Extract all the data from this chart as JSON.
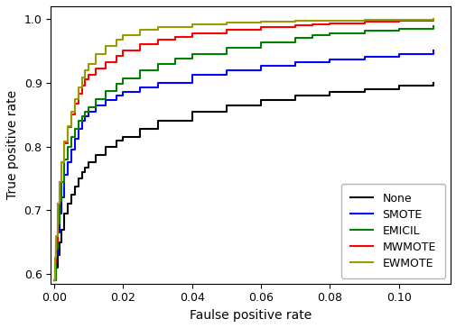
{
  "title": "",
  "xlabel": "Faulse positive rate",
  "ylabel": "True positive rate",
  "xlim": [
    -0.001,
    0.115
  ],
  "ylim": [
    0.585,
    1.02
  ],
  "xticks": [
    0.0,
    0.02,
    0.04,
    0.06,
    0.08,
    0.1
  ],
  "yticks": [
    0.6,
    0.7,
    0.8,
    0.9,
    1.0
  ],
  "legend_labels": [
    "None",
    "SMOTE",
    "EMICIL",
    "MWMOTE",
    "EWMOTE"
  ],
  "legend_colors": [
    "black",
    "blue",
    "green",
    "red",
    "#999900"
  ],
  "legend_loc": "lower right",
  "curves": {
    "None": {
      "color": "black",
      "lw": 1.5,
      "x": [
        0.0,
        0.0005,
        0.001,
        0.0015,
        0.002,
        0.003,
        0.004,
        0.005,
        0.006,
        0.007,
        0.008,
        0.009,
        0.01,
        0.012,
        0.015,
        0.018,
        0.02,
        0.025,
        0.03,
        0.04,
        0.05,
        0.06,
        0.07,
        0.08,
        0.09,
        0.1,
        0.11
      ],
      "y": [
        0.59,
        0.61,
        0.63,
        0.65,
        0.67,
        0.695,
        0.71,
        0.725,
        0.738,
        0.75,
        0.76,
        0.767,
        0.775,
        0.787,
        0.8,
        0.81,
        0.815,
        0.828,
        0.84,
        0.855,
        0.865,
        0.873,
        0.88,
        0.885,
        0.89,
        0.895,
        0.9
      ]
    },
    "SMOTE": {
      "color": "blue",
      "lw": 1.5,
      "x": [
        0.0,
        0.0005,
        0.001,
        0.0015,
        0.002,
        0.003,
        0.004,
        0.005,
        0.006,
        0.007,
        0.008,
        0.009,
        0.01,
        0.012,
        0.015,
        0.018,
        0.02,
        0.025,
        0.03,
        0.04,
        0.05,
        0.06,
        0.07,
        0.08,
        0.09,
        0.1,
        0.11
      ],
      "y": [
        0.59,
        0.63,
        0.665,
        0.695,
        0.72,
        0.755,
        0.775,
        0.795,
        0.812,
        0.828,
        0.84,
        0.848,
        0.855,
        0.864,
        0.873,
        0.88,
        0.885,
        0.893,
        0.9,
        0.912,
        0.92,
        0.927,
        0.932,
        0.937,
        0.941,
        0.945,
        0.95
      ]
    },
    "EMICIL": {
      "color": "green",
      "lw": 1.5,
      "x": [
        0.0,
        0.0005,
        0.001,
        0.0015,
        0.002,
        0.003,
        0.004,
        0.005,
        0.006,
        0.007,
        0.008,
        0.009,
        0.01,
        0.012,
        0.015,
        0.018,
        0.02,
        0.025,
        0.03,
        0.035,
        0.04,
        0.05,
        0.06,
        0.07,
        0.075,
        0.08,
        0.09,
        0.1,
        0.11
      ],
      "y": [
        0.59,
        0.64,
        0.68,
        0.715,
        0.745,
        0.78,
        0.8,
        0.815,
        0.828,
        0.84,
        0.848,
        0.855,
        0.862,
        0.875,
        0.887,
        0.898,
        0.907,
        0.92,
        0.93,
        0.938,
        0.945,
        0.955,
        0.963,
        0.97,
        0.974,
        0.977,
        0.982,
        0.985,
        0.989
      ]
    },
    "MWMOTE": {
      "color": "red",
      "lw": 1.5,
      "x": [
        0.0,
        0.0003,
        0.0005,
        0.001,
        0.0015,
        0.002,
        0.003,
        0.004,
        0.005,
        0.006,
        0.007,
        0.008,
        0.009,
        0.01,
        0.012,
        0.015,
        0.018,
        0.02,
        0.025,
        0.03,
        0.035,
        0.04,
        0.05,
        0.06,
        0.07,
        0.075,
        0.08,
        0.09,
        0.1,
        0.11
      ],
      "y": [
        0.59,
        0.62,
        0.65,
        0.71,
        0.745,
        0.775,
        0.805,
        0.83,
        0.85,
        0.868,
        0.883,
        0.895,
        0.905,
        0.912,
        0.922,
        0.933,
        0.942,
        0.95,
        0.96,
        0.967,
        0.972,
        0.977,
        0.983,
        0.987,
        0.99,
        0.992,
        0.993,
        0.996,
        0.997,
        0.999
      ]
    },
    "EWMOTE": {
      "color": "#999900",
      "lw": 1.5,
      "x": [
        0.0,
        0.0003,
        0.0005,
        0.001,
        0.0015,
        0.002,
        0.003,
        0.004,
        0.005,
        0.006,
        0.007,
        0.008,
        0.009,
        0.01,
        0.012,
        0.015,
        0.018,
        0.02,
        0.025,
        0.03,
        0.04,
        0.05,
        0.06,
        0.07,
        0.08,
        0.09,
        0.1,
        0.11
      ],
      "y": [
        0.59,
        0.625,
        0.66,
        0.71,
        0.745,
        0.775,
        0.808,
        0.832,
        0.855,
        0.875,
        0.893,
        0.908,
        0.92,
        0.93,
        0.945,
        0.958,
        0.968,
        0.975,
        0.983,
        0.988,
        0.992,
        0.994,
        0.996,
        0.997,
        0.998,
        0.999,
        0.999,
        1.0
      ]
    }
  },
  "background_color": "#ffffff",
  "figsize": [
    5.06,
    3.64
  ],
  "dpi": 100
}
